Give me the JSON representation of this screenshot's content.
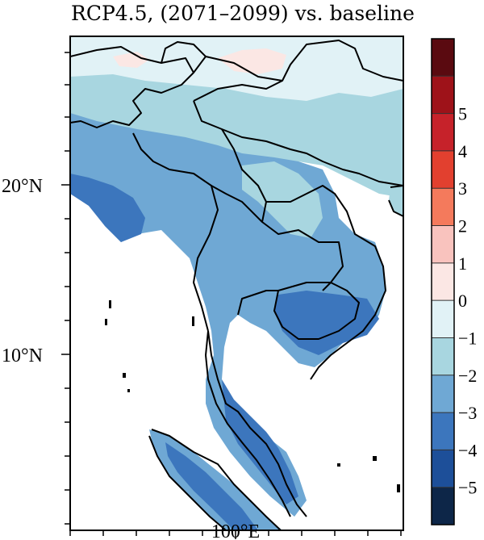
{
  "title": "RCP4.5, (2071–2099) vs. baseline",
  "map": {
    "lat_labels": [
      "20°N",
      "10°N"
    ],
    "lon_labels": [
      "100°E"
    ]
  },
  "colorbar": {
    "labels": [
      "5",
      "4",
      "3",
      "2",
      "1",
      "0",
      "−1",
      "−2",
      "−3",
      "−4",
      "−5"
    ],
    "colors": [
      "#5a0a10",
      "#9e1219",
      "#c6222a",
      "#e2402f",
      "#f47a5c",
      "#f9c3be",
      "#fbe7e4",
      "#e1f2f6",
      "#a8d6e0",
      "#6fa8d4",
      "#3c76bd",
      "#1d4f99",
      "#0d2648"
    ]
  }
}
